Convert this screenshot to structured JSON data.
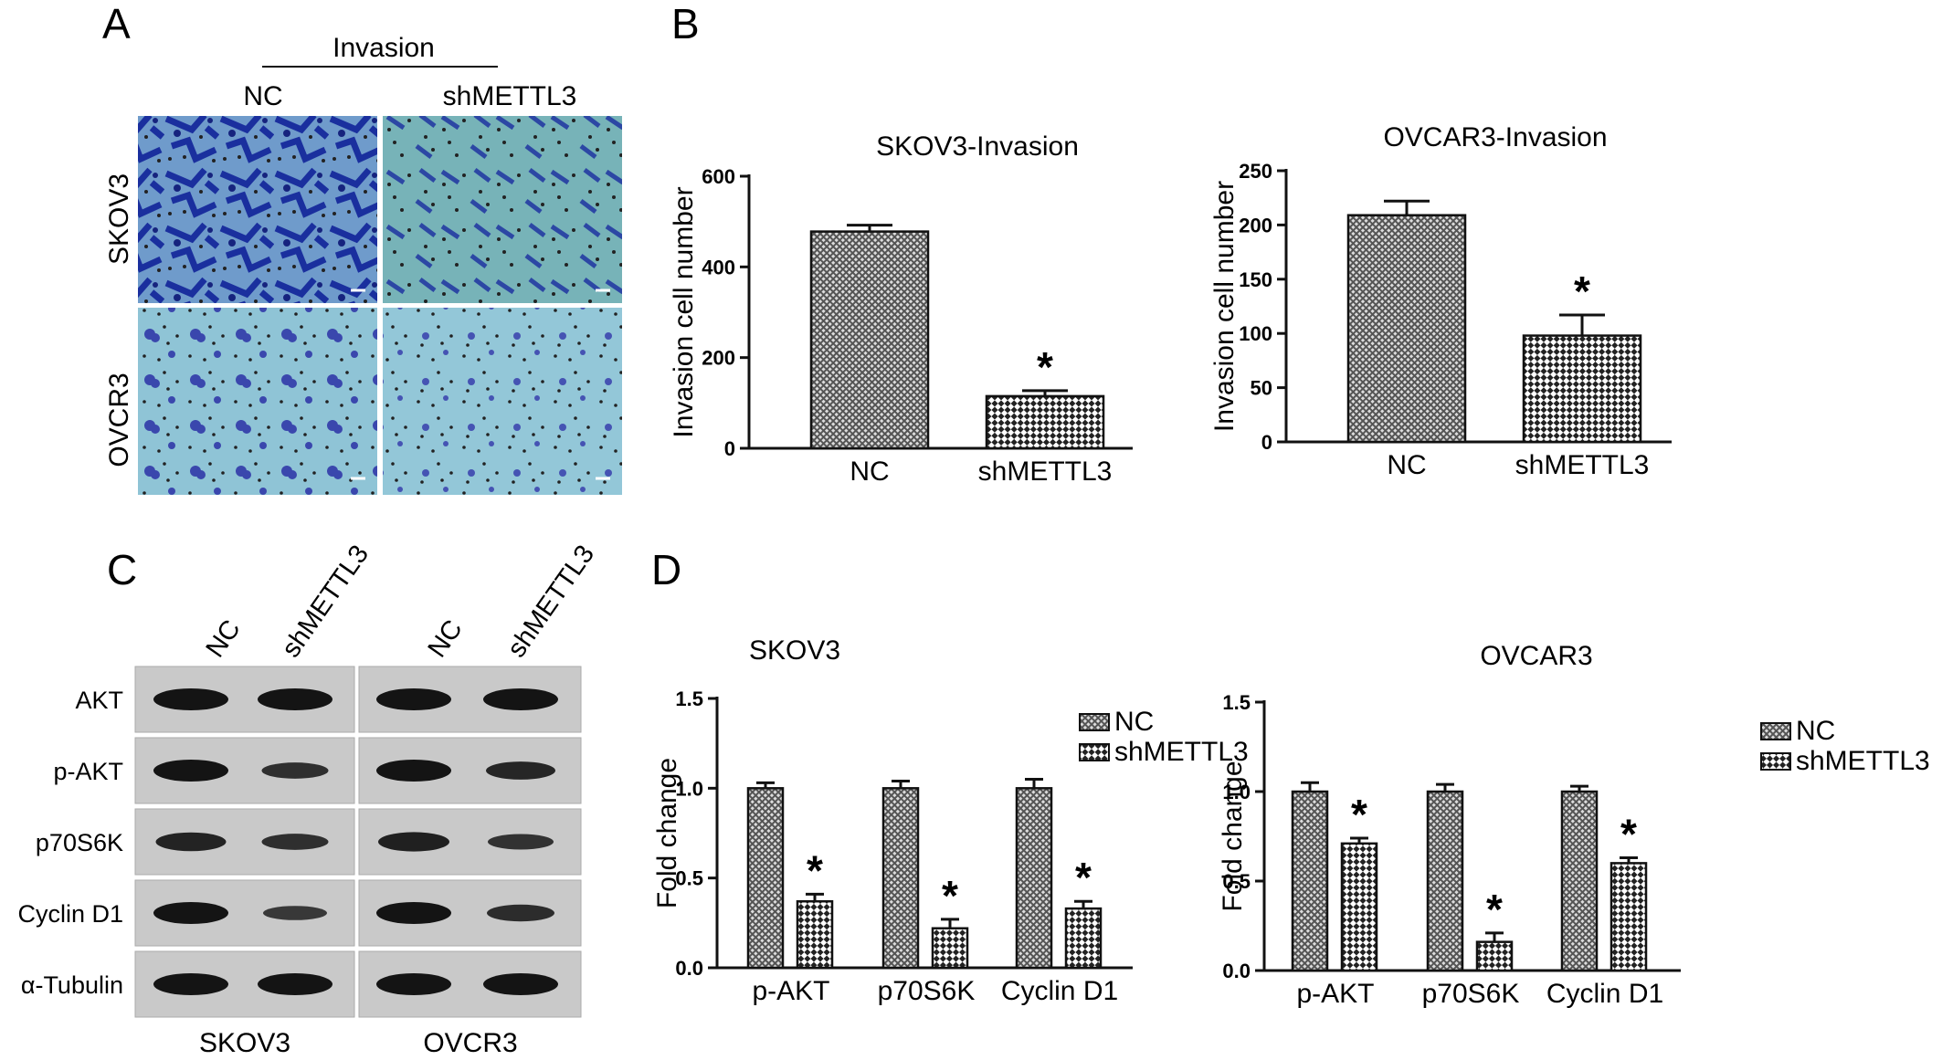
{
  "panels": {
    "A": {
      "label": "A",
      "header": "Invasion",
      "columns": [
        "NC",
        "shMETTL3"
      ],
      "rows": [
        "SKOV3",
        "OVCR3"
      ]
    },
    "B": {
      "label": "B"
    },
    "C": {
      "label": "C",
      "lanes": [
        "NC",
        "shMETTL3",
        "NC",
        "shMETTL3"
      ],
      "proteins": [
        "AKT",
        "p-AKT",
        "p70S6K",
        "Cyclin D1",
        "α-Tubulin"
      ],
      "cell_lines": [
        "SKOV3",
        "OVCR3"
      ]
    },
    "D": {
      "label": "D"
    }
  },
  "colors": {
    "axis": "#111111",
    "bar_fill": "#9a9a9a",
    "bar_stroke": "#111111",
    "background": "#ffffff"
  },
  "chart_data": [
    {
      "id": "B1",
      "type": "bar",
      "title": "SKOV3-Invasion",
      "ylabel": "Invasion cell number",
      "ylim": [
        0,
        600
      ],
      "yticks": [
        0,
        200,
        400,
        600
      ],
      "categories": [
        "NC",
        "shMETTL3"
      ],
      "values": [
        478,
        115
      ],
      "errors": [
        14,
        12
      ],
      "significant": [
        false,
        true
      ],
      "significance_marker": "*",
      "patterns": [
        "diagonal-check",
        "checker"
      ],
      "grid": false
    },
    {
      "id": "B2",
      "type": "bar",
      "title": "OVCAR3-Invasion",
      "ylabel": "Invasion cell number",
      "ylim": [
        0,
        250
      ],
      "yticks": [
        0,
        50,
        100,
        150,
        200,
        250
      ],
      "categories": [
        "NC",
        "shMETTL3"
      ],
      "values": [
        209,
        98
      ],
      "errors": [
        13,
        19
      ],
      "significant": [
        false,
        true
      ],
      "significance_marker": "*",
      "patterns": [
        "diagonal-check",
        "checker"
      ],
      "grid": false
    },
    {
      "id": "D1",
      "type": "bar",
      "title": "SKOV3",
      "ylabel": "Fold change",
      "ylim": [
        0,
        1.5
      ],
      "yticks": [
        "0.0",
        "0.5",
        "1.0",
        "1.5"
      ],
      "categories": [
        "p-AKT",
        "p70S6K",
        "Cyclin D1"
      ],
      "series": [
        {
          "name": "NC",
          "values": [
            1.0,
            1.0,
            1.0
          ],
          "errors": [
            0.03,
            0.04,
            0.05
          ],
          "significant": [
            false,
            false,
            false
          ]
        },
        {
          "name": "shMETTL3",
          "values": [
            0.37,
            0.22,
            0.33
          ],
          "errors": [
            0.04,
            0.05,
            0.04
          ],
          "significant": [
            true,
            true,
            true
          ]
        }
      ],
      "significance_marker": "*",
      "legend": "top-right",
      "grid": false
    },
    {
      "id": "D2",
      "type": "bar",
      "title": "OVCAR3",
      "ylabel": "Fold change",
      "ylim": [
        0,
        1.5
      ],
      "yticks": [
        "0.0",
        "0.5",
        "1.0",
        "1.5"
      ],
      "categories": [
        "p-AKT",
        "p70S6K",
        "Cyclin D1"
      ],
      "series": [
        {
          "name": "NC",
          "values": [
            1.0,
            1.0,
            1.0
          ],
          "errors": [
            0.05,
            0.04,
            0.03
          ],
          "significant": [
            false,
            false,
            false
          ]
        },
        {
          "name": "shMETTL3",
          "values": [
            0.71,
            0.16,
            0.6
          ],
          "errors": [
            0.03,
            0.05,
            0.03
          ],
          "significant": [
            true,
            true,
            true
          ]
        }
      ],
      "significance_marker": "*",
      "legend": "right",
      "grid": false
    }
  ]
}
